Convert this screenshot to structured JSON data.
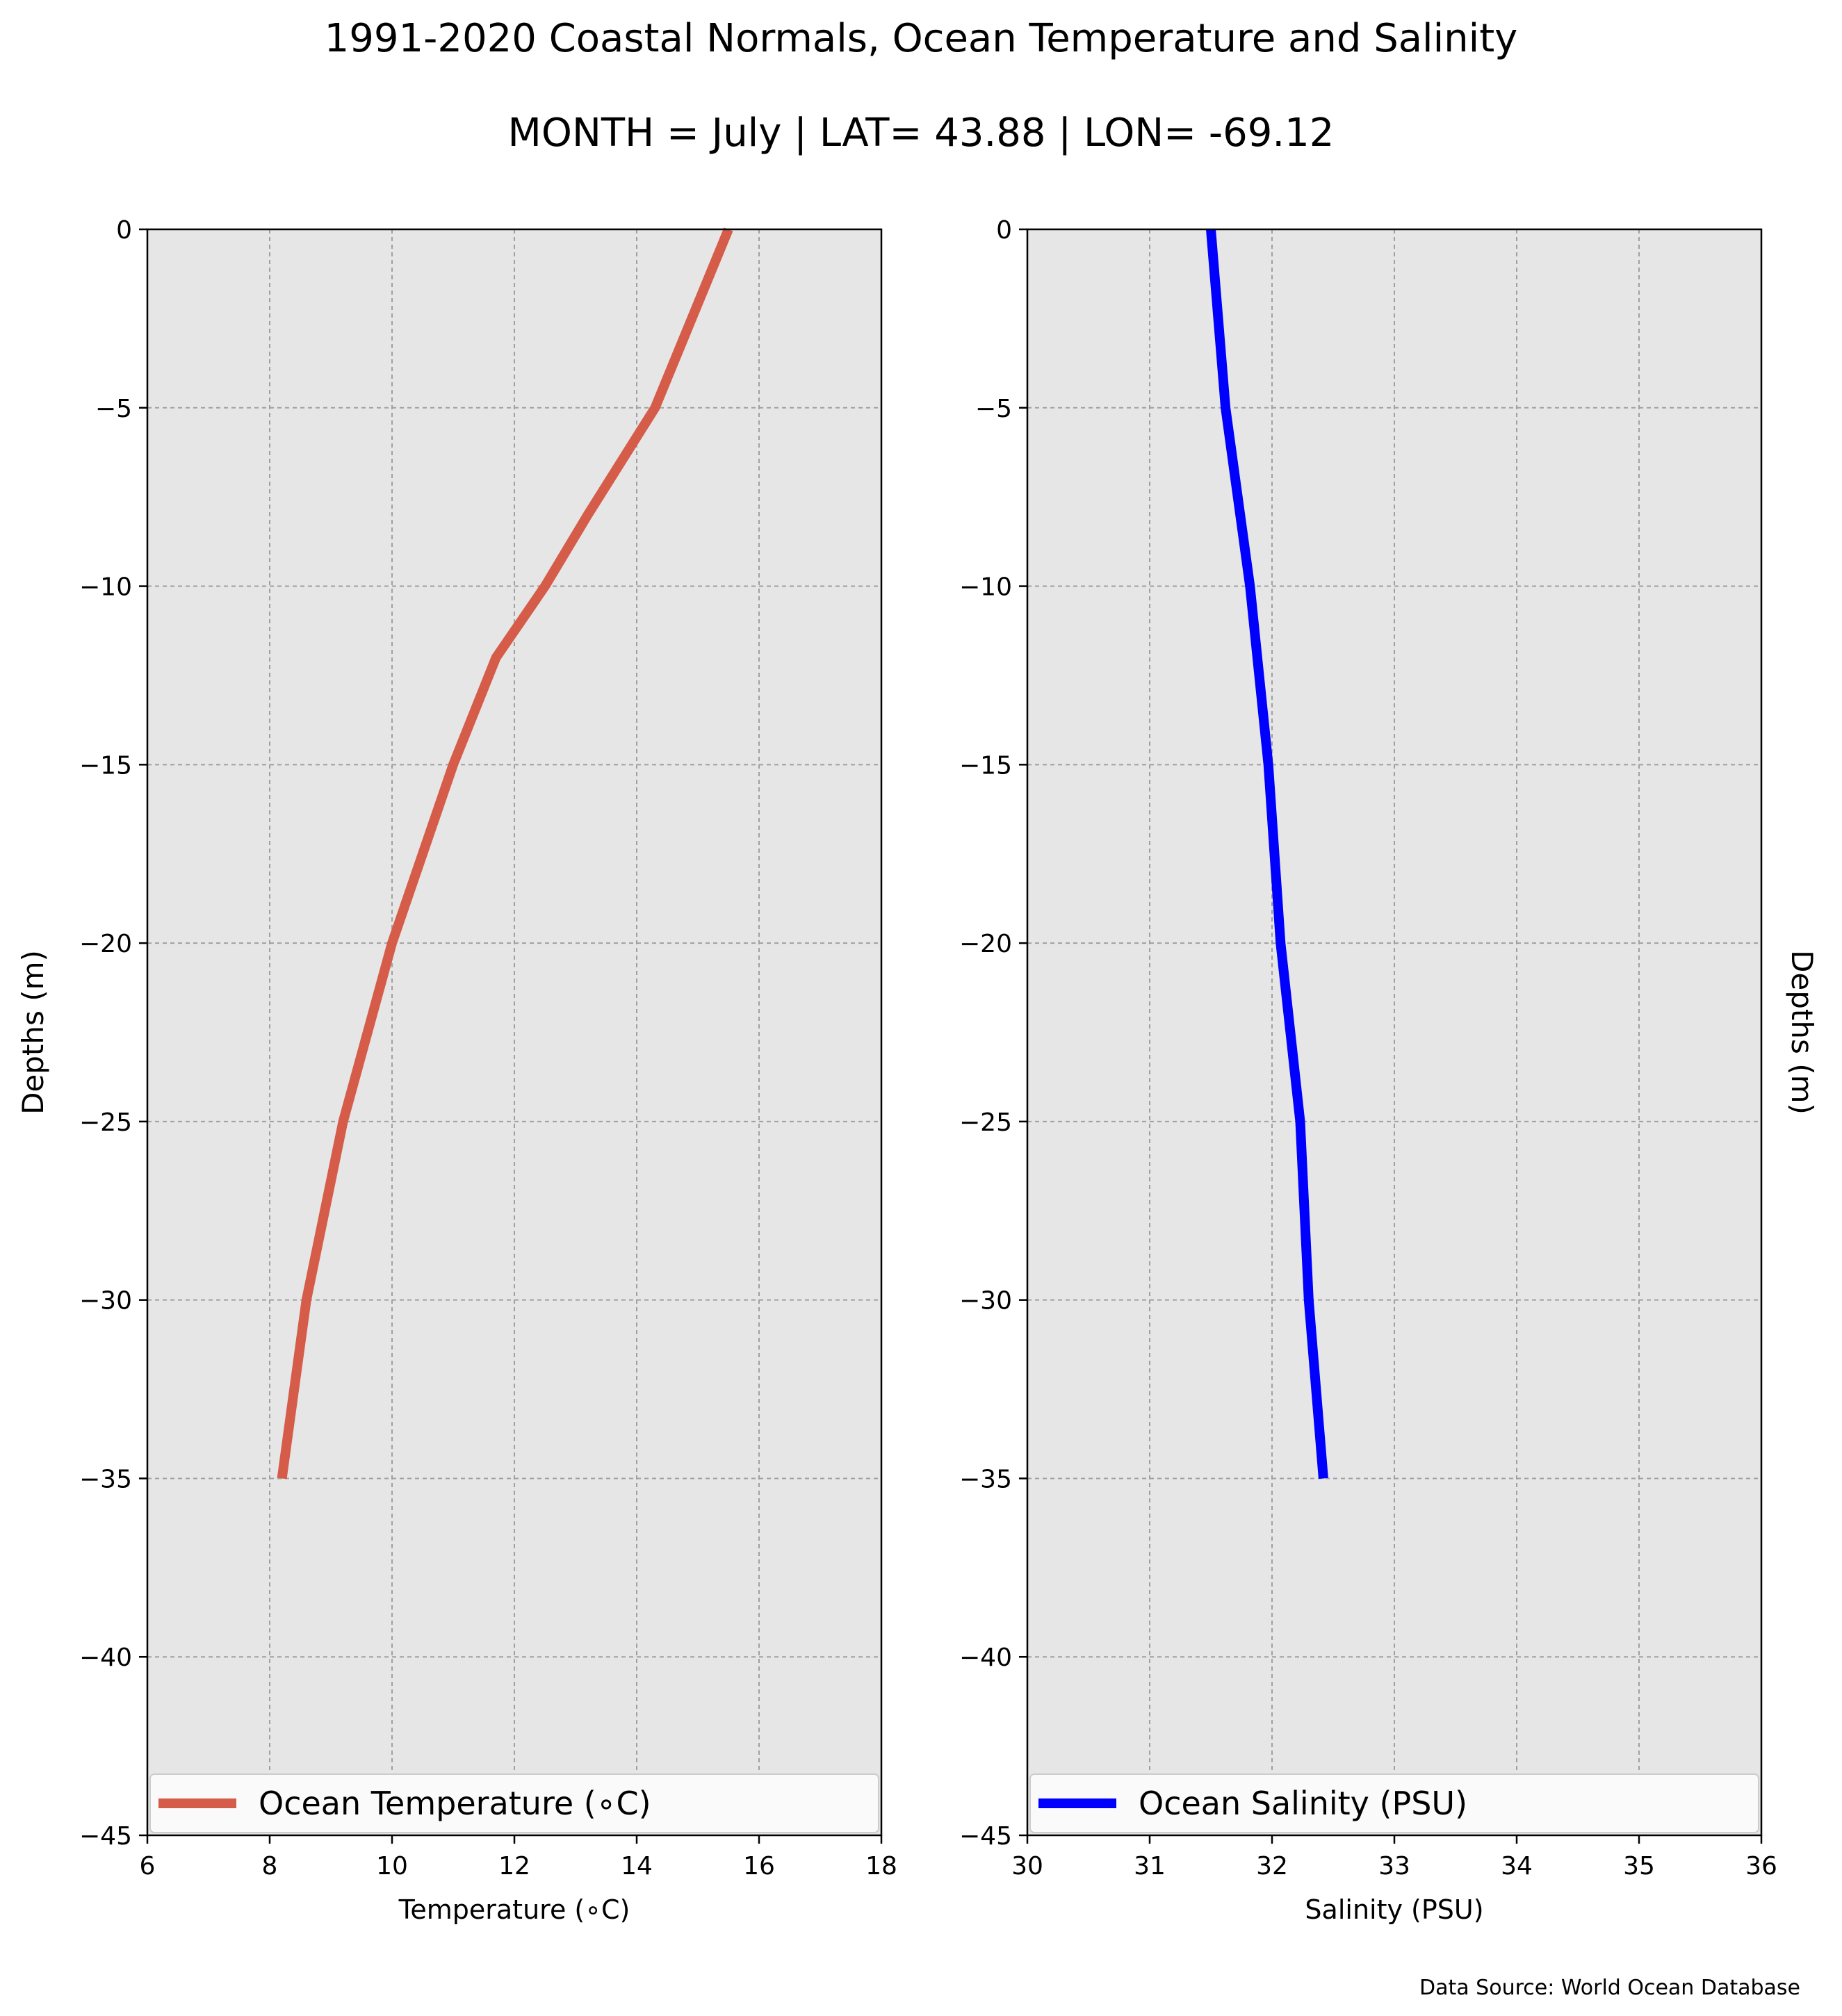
{
  "title": "1991-2020 Coastal Normals, Ocean Temperature and Salinity",
  "subtitle": "MONTH = July | LAT= 43.88 | LON= -69.12",
  "source_note": "Data Source: World Ocean Database",
  "colors": {
    "temperature": "#d65c4a",
    "salinity": "#0000ff",
    "plot_bg": "#e6e6e6",
    "grid": "#a0a0a0"
  },
  "chart_data": [
    {
      "type": "line",
      "xlabel": "Temperature ($^\\circ$C)",
      "xlabel_display": "Temperature (∘C)",
      "ylabel": "Depths (m)",
      "xlim": [
        6,
        18
      ],
      "ylim": [
        -45,
        0
      ],
      "xticks": [
        6,
        8,
        10,
        12,
        14,
        16,
        18
      ],
      "yticks": [
        0,
        -5,
        -10,
        -15,
        -20,
        -25,
        -30,
        -35,
        -40,
        -45
      ],
      "ytick_labels": [
        "0",
        "−5",
        "−10",
        "−15",
        "−20",
        "−25",
        "−30",
        "−35",
        "−40",
        "−45"
      ],
      "grid": true,
      "legend_position": "lower-left",
      "series": [
        {
          "name": "Ocean Temperature (∘C)",
          "x": [
            15.5,
            14.3,
            13.2,
            12.5,
            11.7,
            11.0,
            10.0,
            9.2,
            8.6,
            8.2
          ],
          "y": [
            0,
            -5,
            -8,
            -10,
            -12,
            -15,
            -20,
            -25,
            -30,
            -35
          ]
        }
      ]
    },
    {
      "type": "line",
      "xlabel": "Salinity (PSU)",
      "ylabel": "Depths (m)",
      "xlim": [
        30,
        36
      ],
      "ylim": [
        -45,
        0
      ],
      "xticks": [
        30,
        31,
        32,
        33,
        34,
        35,
        36
      ],
      "yticks": [
        0,
        -5,
        -10,
        -15,
        -20,
        -25,
        -30,
        -35,
        -40,
        -45
      ],
      "ytick_labels": [
        "0",
        "−5",
        "−10",
        "−15",
        "−20",
        "−25",
        "−30",
        "−35",
        "−40",
        "−45"
      ],
      "grid": true,
      "legend_position": "lower-left",
      "series": [
        {
          "name": "Ocean Salinity (PSU)",
          "x": [
            31.5,
            31.62,
            31.82,
            31.97,
            32.07,
            32.23,
            32.3,
            32.42
          ],
          "y": [
            0,
            -5,
            -10,
            -15,
            -20,
            -25,
            -30,
            -35
          ]
        }
      ]
    }
  ]
}
